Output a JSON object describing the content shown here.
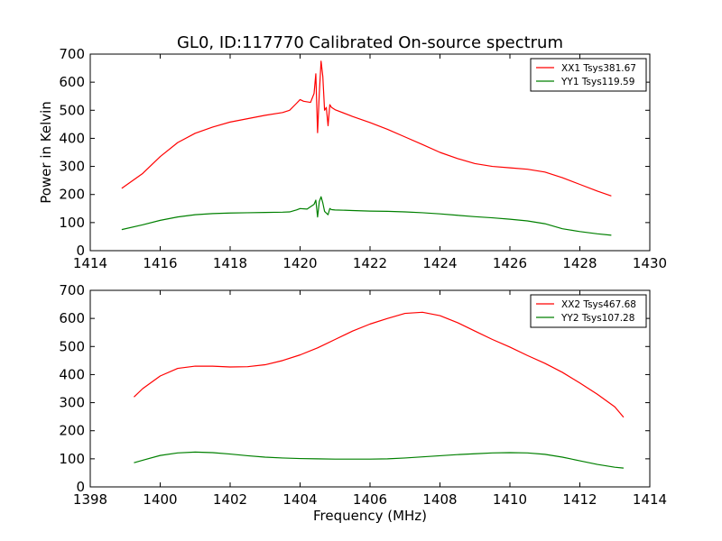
{
  "chart_data": [
    {
      "type": "line",
      "title": "GL0, ID:117770 Calibrated On-source spectrum",
      "xlabel": "",
      "ylabel": "Power in Kelvin",
      "xlim": [
        1414,
        1430
      ],
      "ylim": [
        0,
        700
      ],
      "xticks": [
        "1414",
        "1416",
        "1418",
        "1420",
        "1422",
        "1424",
        "1426",
        "1428",
        "1430"
      ],
      "yticks": [
        "0",
        "100",
        "200",
        "300",
        "400",
        "500",
        "600",
        "700"
      ],
      "grid": false,
      "legend_position": "top-right",
      "series": [
        {
          "name": "XX1 Tsys381.67",
          "color": "#ff0000",
          "x": [
            1414.9,
            1415.5,
            1416.0,
            1416.5,
            1417.0,
            1417.5,
            1418.0,
            1418.5,
            1419.0,
            1419.5,
            1419.7,
            1419.9,
            1420.0,
            1420.1,
            1420.2,
            1420.3,
            1420.4,
            1420.45,
            1420.5,
            1420.55,
            1420.6,
            1420.65,
            1420.7,
            1420.75,
            1420.8,
            1420.85,
            1420.9,
            1421.0,
            1421.5,
            1422.0,
            1422.5,
            1423.0,
            1423.5,
            1424.0,
            1424.5,
            1425.0,
            1425.5,
            1426.0,
            1426.5,
            1427.0,
            1427.5,
            1428.0,
            1428.5,
            1428.9
          ],
          "y": [
            222,
            275,
            335,
            385,
            418,
            440,
            458,
            470,
            482,
            492,
            500,
            525,
            538,
            532,
            530,
            528,
            560,
            630,
            420,
            560,
            675,
            620,
            500,
            510,
            445,
            520,
            510,
            502,
            478,
            456,
            432,
            405,
            378,
            350,
            328,
            310,
            300,
            295,
            290,
            280,
            260,
            236,
            212,
            195
          ]
        },
        {
          "name": "YY1 Tsys119.59",
          "color": "#008000",
          "x": [
            1414.9,
            1415.5,
            1416.0,
            1416.5,
            1417.0,
            1417.5,
            1418.0,
            1418.5,
            1419.0,
            1419.5,
            1419.7,
            1419.9,
            1420.0,
            1420.2,
            1420.4,
            1420.45,
            1420.5,
            1420.55,
            1420.6,
            1420.65,
            1420.7,
            1420.8,
            1420.85,
            1420.9,
            1421.0,
            1421.5,
            1422.0,
            1422.5,
            1423.0,
            1423.5,
            1424.0,
            1424.5,
            1425.0,
            1425.5,
            1426.0,
            1426.5,
            1427.0,
            1427.5,
            1428.0,
            1428.5,
            1428.9
          ],
          "y": [
            75,
            92,
            108,
            120,
            128,
            132,
            134,
            135,
            136,
            137,
            138,
            145,
            150,
            148,
            165,
            180,
            120,
            175,
            192,
            170,
            140,
            128,
            150,
            146,
            145,
            143,
            141,
            140,
            138,
            135,
            131,
            126,
            121,
            117,
            112,
            106,
            96,
            78,
            68,
            60,
            55
          ]
        }
      ]
    },
    {
      "type": "line",
      "title": "",
      "xlabel": "Frequency (MHz)",
      "ylabel": "",
      "xlim": [
        1398,
        1414
      ],
      "ylim": [
        0,
        700
      ],
      "xticks": [
        "1398",
        "1400",
        "1402",
        "1404",
        "1406",
        "1408",
        "1410",
        "1412",
        "1414"
      ],
      "yticks": [
        "0",
        "100",
        "200",
        "300",
        "400",
        "500",
        "600",
        "700"
      ],
      "grid": false,
      "legend_position": "top-right",
      "series": [
        {
          "name": "XX2 Tsys467.68",
          "color": "#ff0000",
          "x": [
            1399.25,
            1399.5,
            1400.0,
            1400.5,
            1401.0,
            1401.5,
            1402.0,
            1402.5,
            1403.0,
            1403.5,
            1404.0,
            1404.5,
            1405.0,
            1405.5,
            1406.0,
            1406.5,
            1407.0,
            1407.5,
            1408.0,
            1408.5,
            1409.0,
            1409.5,
            1410.0,
            1410.5,
            1411.0,
            1411.5,
            1412.0,
            1412.5,
            1413.0,
            1413.25
          ],
          "y": [
            320,
            350,
            395,
            422,
            430,
            430,
            427,
            428,
            435,
            450,
            470,
            495,
            525,
            555,
            580,
            600,
            618,
            622,
            610,
            585,
            555,
            525,
            498,
            468,
            440,
            408,
            370,
            330,
            285,
            248
          ]
        },
        {
          "name": "YY2 Tsys107.28",
          "color": "#008000",
          "x": [
            1399.25,
            1399.5,
            1400.0,
            1400.5,
            1401.0,
            1401.5,
            1402.0,
            1402.5,
            1403.0,
            1403.5,
            1404.0,
            1404.5,
            1405.0,
            1405.5,
            1406.0,
            1406.5,
            1407.0,
            1407.5,
            1408.0,
            1408.5,
            1409.0,
            1409.5,
            1410.0,
            1410.5,
            1411.0,
            1411.5,
            1412.0,
            1412.5,
            1413.0,
            1413.25
          ],
          "y": [
            86,
            95,
            112,
            121,
            124,
            122,
            117,
            111,
            106,
            103,
            101,
            100,
            99,
            99,
            99,
            100,
            103,
            107,
            111,
            115,
            118,
            121,
            122,
            121,
            116,
            106,
            93,
            80,
            70,
            67
          ]
        }
      ]
    }
  ]
}
